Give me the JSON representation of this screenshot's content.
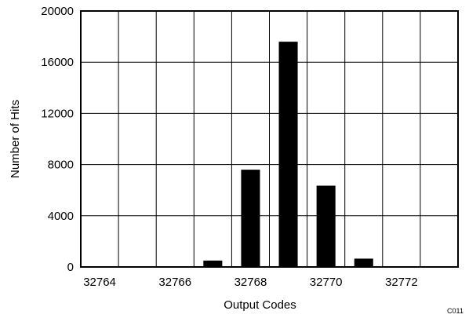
{
  "chart_data": {
    "type": "bar",
    "xlabel": "Output Codes",
    "ylabel": "Number of Hits",
    "figure_code": "C011",
    "ylim": [
      0,
      20000
    ],
    "xlim": [
      32763.5,
      32773.5
    ],
    "yticks": [
      0,
      4000,
      8000,
      12000,
      16000,
      20000
    ],
    "xticks": [
      32764,
      32766,
      32768,
      32770,
      32772
    ],
    "grid": true,
    "categories": [
      32764,
      32765,
      32766,
      32767,
      32768,
      32769,
      32770,
      32771,
      32772,
      32773
    ],
    "values": [
      0,
      0,
      0,
      500,
      7600,
      17600,
      6350,
      650,
      0,
      0
    ]
  }
}
